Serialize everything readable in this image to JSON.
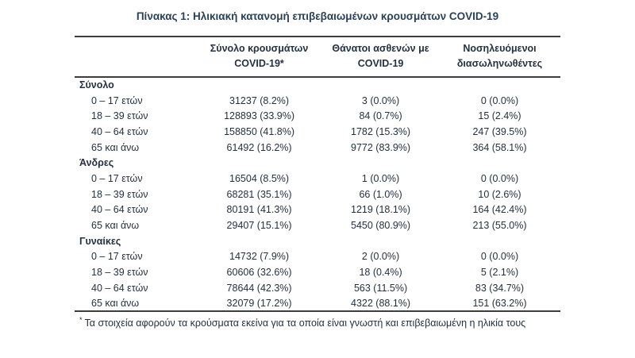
{
  "title": "Πίνακας 1: Ηλικιακή κατανομή επιβεβαιωμένων κρουσμάτων COVID-19",
  "table": {
    "headers": [
      {
        "line1": "Σύνολο κρουσμάτων",
        "line2": "COVID-19*"
      },
      {
        "line1": "Θάνατοι ασθενών με",
        "line2": "COVID-19"
      },
      {
        "line1": "Νοσηλευόμενοι",
        "line2": "διασωληνωθέντες"
      }
    ],
    "sections": [
      {
        "label": "Σύνολο",
        "rows": [
          {
            "age": "0 – 17 ετών",
            "cases": "31237 (8.2%)",
            "deaths": "3 (0.0%)",
            "intubated": "0 (0.0%)"
          },
          {
            "age": "18 – 39 ετών",
            "cases": "128893 (33.9%)",
            "deaths": "84 (0.7%)",
            "intubated": "15 (2.4%)"
          },
          {
            "age": "40 – 64 ετών",
            "cases": "158850 (41.8%)",
            "deaths": "1782 (15.3%)",
            "intubated": "247 (39.5%)"
          },
          {
            "age": "65 και άνω",
            "cases": "61492 (16.2%)",
            "deaths": "9772 (83.9%)",
            "intubated": "364 (58.1%)"
          }
        ]
      },
      {
        "label": "Άνδρες",
        "rows": [
          {
            "age": "0 – 17 ετών",
            "cases": "16504 (8.5%)",
            "deaths": "1 (0.0%)",
            "intubated": "0 (0.0%)"
          },
          {
            "age": "18 – 39 ετών",
            "cases": "68281 (35.1%)",
            "deaths": "66 (1.0%)",
            "intubated": "10 (2.6%)"
          },
          {
            "age": "40 – 64 ετών",
            "cases": "80191 (41.3%)",
            "deaths": "1219 (18.1%)",
            "intubated": "164 (42.4%)"
          },
          {
            "age": "65 και άνω",
            "cases": "29407 (15.1%)",
            "deaths": "5450 (80.9%)",
            "intubated": "213 (55.0%)"
          }
        ]
      },
      {
        "label": "Γυναίκες",
        "rows": [
          {
            "age": "0 – 17 ετών",
            "cases": "14732 (7.9%)",
            "deaths": "2 (0.0%)",
            "intubated": "0 (0.0%)"
          },
          {
            "age": "18 – 39 ετών",
            "cases": "60606 (32.6%)",
            "deaths": "18 (0.4%)",
            "intubated": "5 (2.1%)"
          },
          {
            "age": "40 – 64 ετών",
            "cases": "78644 (42.3%)",
            "deaths": "563 (11.5%)",
            "intubated": "83 (34.7%)"
          },
          {
            "age": "65 και άνω",
            "cases": "32079 (17.2%)",
            "deaths": "4322 (88.1%)",
            "intubated": "151 (63.2%)"
          }
        ]
      }
    ],
    "footnote": {
      "marker": "*",
      "text": "Τα στοιχεία αφορούν τα κρούσματα εκείνα για τα οποία είναι γνωστή και επιβεβαιωμένη η ηλικία τους"
    }
  },
  "colors": {
    "background": "#ffffff",
    "text": "#243140",
    "title": "#2a4158",
    "border": "#3d3d3d"
  }
}
